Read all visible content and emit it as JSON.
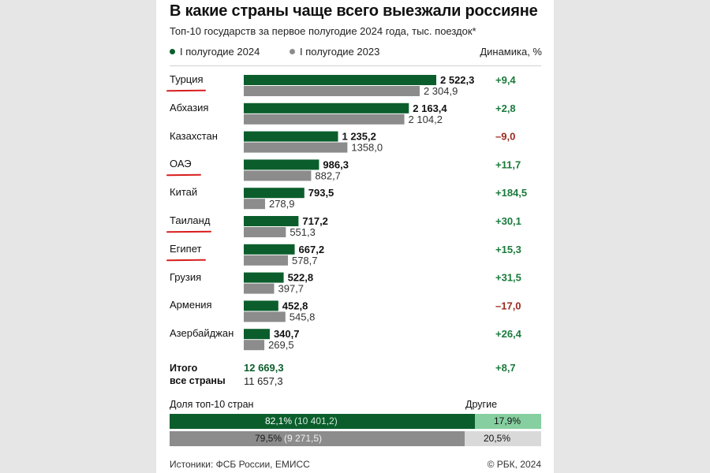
{
  "title": "В какие страны чаще всего выезжали россияне",
  "subtitle": "Топ-10 государств за первое полугодие 2024 года, тыс. поездок*",
  "legend": {
    "series_2024": "I полугодие 2024",
    "series_2023": "I полугодие 2023",
    "dynamics_header": "Динамика, %"
  },
  "colors": {
    "series_2024": "#0b5e2c",
    "series_2023": "#8c8c8c",
    "positive": "#1a7a3c",
    "negative": "#9b2a1e",
    "underline": "#d81e1e",
    "others_2024": "#86cfa0",
    "others_2023": "#d9d9d9"
  },
  "chart_data": {
    "type": "bar",
    "orientation": "horizontal",
    "categories": [
      "Турция",
      "Абхазия",
      "Казахстан",
      "ОАЭ",
      "Китай",
      "Таиланд",
      "Египет",
      "Грузия",
      "Армения",
      "Азербайджан"
    ],
    "series": [
      {
        "name": "I полугодие 2024",
        "values": [
          2522.3,
          2163.4,
          1235.2,
          986.3,
          793.5,
          717.2,
          667.2,
          522.8,
          452.8,
          340.7
        ],
        "labels": [
          "2 522,3",
          "2 163,4",
          "1 235,2",
          "986,3",
          "793,5",
          "717,2",
          "667,2",
          "522,8",
          "452,8",
          "340,7"
        ]
      },
      {
        "name": "I полугодие 2023",
        "values": [
          2304.9,
          2104.2,
          1358.0,
          882.7,
          278.9,
          551.3,
          578.7,
          397.7,
          545.8,
          269.5
        ],
        "labels": [
          "2 304,9",
          "2 104,2",
          "1358,0",
          "882,7",
          "278,9",
          "551,3",
          "578,7",
          "397,7",
          "545,8",
          "269,5"
        ]
      }
    ],
    "dynamics": [
      9.4,
      2.8,
      -9.0,
      11.7,
      184.5,
      30.1,
      15.3,
      31.5,
      -17.0,
      26.4
    ],
    "dynamics_labels": [
      "+9,4",
      "+2,8",
      "–9,0",
      "+11,7",
      "+184,5",
      "+30,1",
      "+15,3",
      "+31,5",
      "–17,0",
      "+26,4"
    ],
    "underlined": [
      "Турция",
      "ОАЭ",
      "Таиланд",
      "Египет"
    ],
    "xlim": [
      0,
      2522.3
    ],
    "grid": false
  },
  "total": {
    "label_line1": "Итого",
    "label_line2": "все страны",
    "value_2024": "12 669,3",
    "value_2023": "11 657,3",
    "dynamics": "+8,7"
  },
  "share": {
    "label": "Доля топ-10 стран",
    "others_label": "Другие",
    "bars": [
      {
        "top10_fraction": 0.821,
        "pct": "82,1%",
        "amount": "(10 401,2)",
        "others_pct": "17,9%"
      },
      {
        "top10_fraction": 0.795,
        "pct": "79,5%",
        "amount": "(9 271,5)",
        "others_pct": "20,5%"
      }
    ]
  },
  "footer": {
    "sources": "Истоники: ФСБ России, ЕМИСС",
    "copyright": "© РБК, 2024"
  }
}
